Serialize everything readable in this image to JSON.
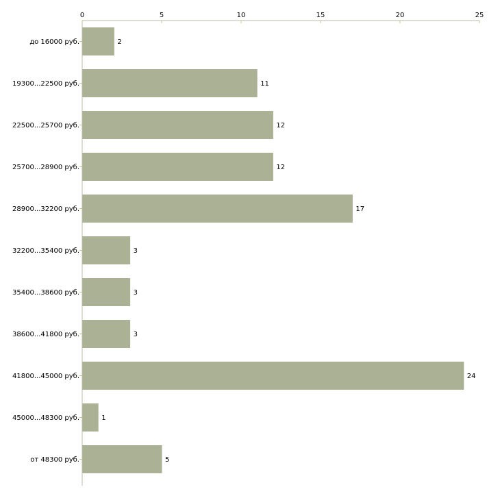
{
  "chart_data": {
    "type": "bar",
    "orientation": "horizontal",
    "title": "",
    "xlabel": "",
    "ylabel": "",
    "xlim": [
      0,
      25
    ],
    "xticks": [
      0,
      5,
      10,
      15,
      20,
      25
    ],
    "categories": [
      "до 16000 руб.",
      "19300...22500 руб.",
      "22500...25700 руб.",
      "25700...28900 руб.",
      "28900...32200 руб.",
      "32200...35400 руб.",
      "35400...38600 руб.",
      "38600...41800 руб.",
      "41800...45000 руб.",
      "45000...48300 руб.",
      "от 48300 руб."
    ],
    "values": [
      2,
      11,
      12,
      12,
      17,
      3,
      3,
      3,
      24,
      1,
      5
    ],
    "bar_color": "#abb194",
    "axis_color": "#bbbbaa",
    "tick_color": "#c8c48a",
    "grid": false,
    "legend": "none"
  }
}
